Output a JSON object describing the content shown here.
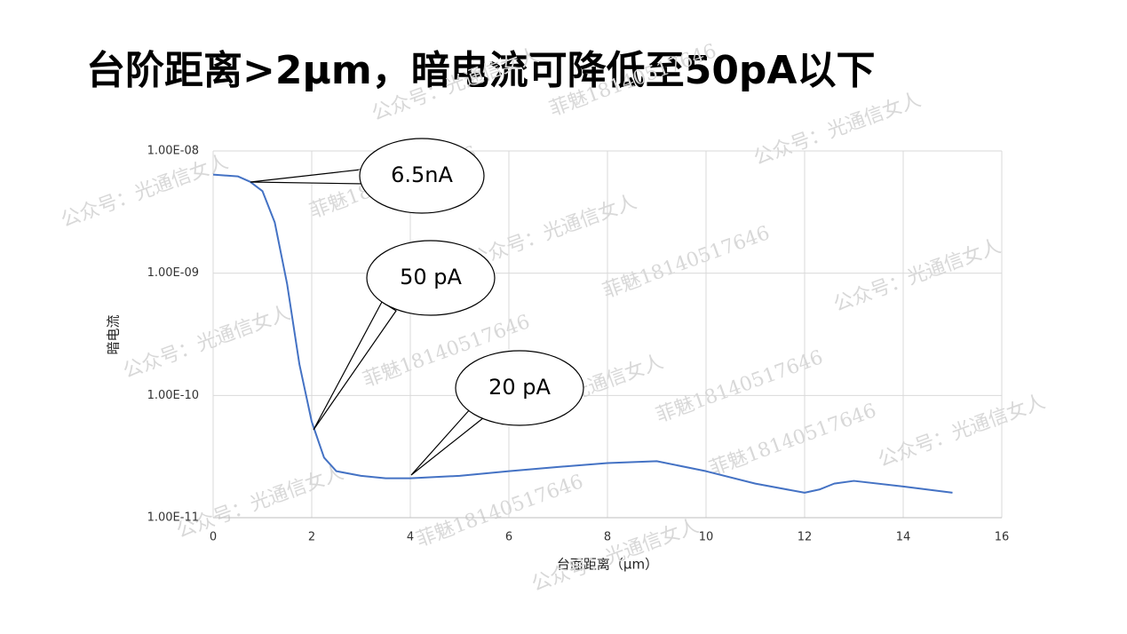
{
  "chart_data": {
    "type": "line",
    "title": "台阶距离>2μm，暗电流可降低至50pA以下",
    "xlabel": "台面距离（μm）",
    "ylabel": "暗电流",
    "yscale": "log",
    "grid": true,
    "x": [
      0,
      0.5,
      0.75,
      1,
      1.25,
      1.5,
      1.75,
      2,
      2.25,
      2.5,
      3,
      3.5,
      4,
      5,
      6,
      7,
      8,
      9,
      10,
      11,
      12,
      12.3,
      12.6,
      13,
      14,
      15
    ],
    "series": [
      {
        "name": "暗电流",
        "color": "#4472c4",
        "values": [
          6.4e-09,
          6.2e-09,
          5.6e-09,
          4.7e-09,
          2.6e-09,
          8.2e-10,
          1.8e-10,
          6.1e-11,
          3.1e-11,
          2.4e-11,
          2.2e-11,
          2.1e-11,
          2.1e-11,
          2.2e-11,
          2.4e-11,
          2.6e-11,
          2.8e-11,
          2.9e-11,
          2.4e-11,
          1.9e-11,
          1.6e-11,
          1.7e-11,
          1.9e-11,
          2e-11,
          1.8e-11,
          1.6e-11
        ]
      }
    ],
    "xlim": [
      0,
      16
    ],
    "xticks": [
      0,
      2,
      4,
      6,
      8,
      10,
      12,
      14,
      16
    ],
    "ylim": [
      1e-11,
      1e-08
    ],
    "yticks": [
      {
        "value": 1e-11,
        "label": "1.00E-11"
      },
      {
        "value": 1e-10,
        "label": "1.00E-10"
      },
      {
        "value": 1e-09,
        "label": "1.00E-09"
      },
      {
        "value": 1e-08,
        "label": "1.00E-08"
      }
    ],
    "annotations": [
      "6.5nA",
      "50 pA",
      "20 pA"
    ],
    "watermarks": [
      "公众号：光通信女人",
      "菲魅18140517646"
    ]
  }
}
